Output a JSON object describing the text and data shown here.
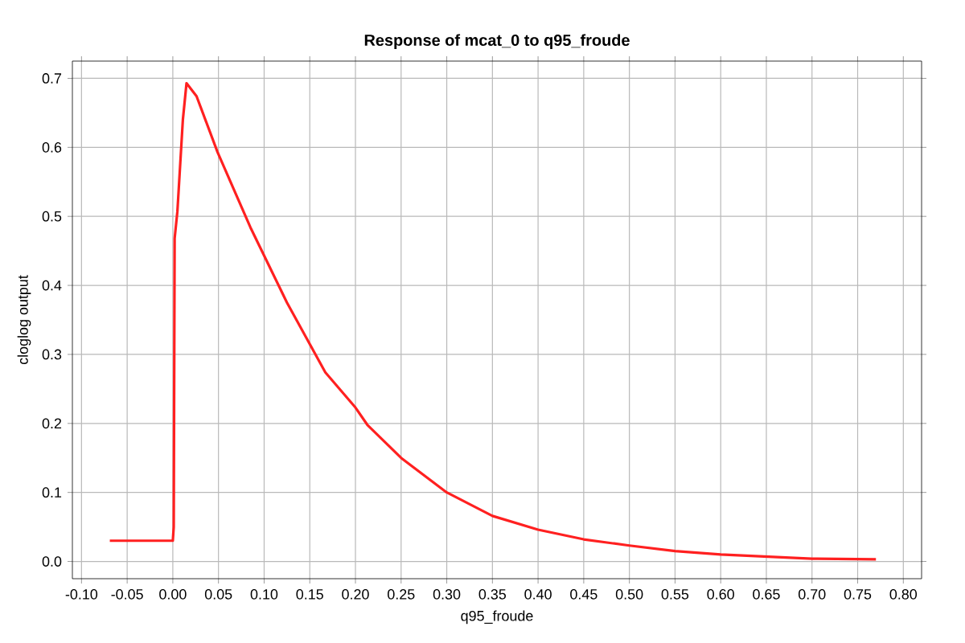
{
  "chart_data": {
    "type": "line",
    "title": "Response of mcat_0 to q95_froude",
    "xlabel": "q95_froude",
    "ylabel": "cloglog output",
    "x": [
      -0.069,
      -0.03,
      0.0,
      0.001,
      0.002,
      0.005,
      0.011,
      0.015,
      0.026,
      0.049,
      0.085,
      0.125,
      0.167,
      0.2,
      0.213,
      0.25,
      0.3,
      0.35,
      0.4,
      0.45,
      0.5,
      0.55,
      0.6,
      0.65,
      0.7,
      0.77
    ],
    "series": [
      {
        "color": "#ff2020",
        "values": [
          0.03,
          0.03,
          0.03,
          0.05,
          0.468,
          0.507,
          0.64,
          0.693,
          0.674,
          0.593,
          0.484,
          0.375,
          0.274,
          0.223,
          0.198,
          0.15,
          0.1,
          0.066,
          0.046,
          0.032,
          0.023,
          0.015,
          0.01,
          0.007,
          0.004,
          0.003
        ]
      }
    ],
    "xlim": [
      -0.11,
      0.82
    ],
    "ylim": [
      -0.025,
      0.725
    ],
    "xticks": [
      {
        "value": -0.1,
        "label": "-0.10"
      },
      {
        "value": -0.05,
        "label": "-0.05"
      },
      {
        "value": 0.0,
        "label": "0.00"
      },
      {
        "value": 0.05,
        "label": "0.05"
      },
      {
        "value": 0.1,
        "label": "0.10"
      },
      {
        "value": 0.15,
        "label": "0.15"
      },
      {
        "value": 0.2,
        "label": "0.20"
      },
      {
        "value": 0.25,
        "label": "0.25"
      },
      {
        "value": 0.3,
        "label": "0.30"
      },
      {
        "value": 0.35,
        "label": "0.35"
      },
      {
        "value": 0.4,
        "label": "0.40"
      },
      {
        "value": 0.45,
        "label": "0.45"
      },
      {
        "value": 0.5,
        "label": "0.50"
      },
      {
        "value": 0.55,
        "label": "0.55"
      },
      {
        "value": 0.6,
        "label": "0.60"
      },
      {
        "value": 0.65,
        "label": "0.65"
      },
      {
        "value": 0.7,
        "label": "0.70"
      },
      {
        "value": 0.75,
        "label": "0.75"
      },
      {
        "value": 0.8,
        "label": "0.80"
      }
    ],
    "yticks": [
      {
        "value": 0.0,
        "label": "0.0"
      },
      {
        "value": 0.1,
        "label": "0.1"
      },
      {
        "value": 0.2,
        "label": "0.2"
      },
      {
        "value": 0.3,
        "label": "0.3"
      },
      {
        "value": 0.4,
        "label": "0.4"
      },
      {
        "value": 0.5,
        "label": "0.5"
      },
      {
        "value": 0.6,
        "label": "0.6"
      },
      {
        "value": 0.7,
        "label": "0.7"
      }
    ],
    "grid": true,
    "marker": "none",
    "line_style": "solid"
  }
}
